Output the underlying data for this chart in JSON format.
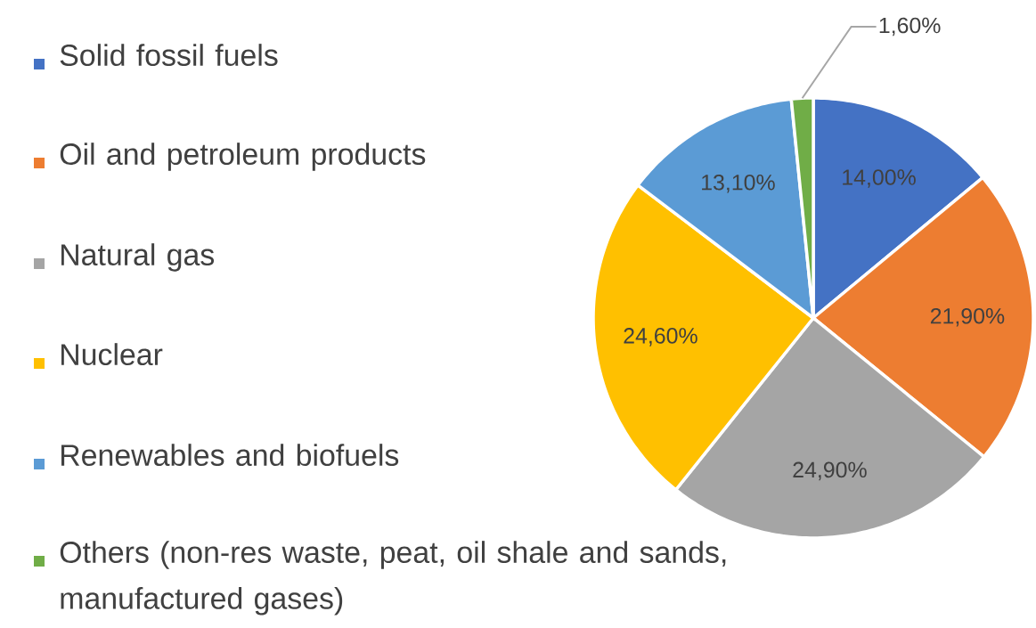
{
  "chart_data": {
    "type": "pie",
    "categories": [
      "Solid fossil fuels",
      "Oil and petroleum products",
      "Natural gas",
      "Nuclear",
      "Renewables and biofuels",
      "Others (non-res waste, peat, oil shale and sands, manufactured gases)"
    ],
    "values": [
      14.0,
      21.9,
      24.9,
      24.6,
      13.1,
      1.6
    ],
    "value_labels": [
      "14,00%",
      "21,90%",
      "24,90%",
      "24,60%",
      "13,10%",
      "1,60%"
    ],
    "colors": [
      "#4472c4",
      "#ed7d31",
      "#a5a5a5",
      "#ffc000",
      "#5b9bd5",
      "#70ad47"
    ],
    "legend": "left"
  }
}
